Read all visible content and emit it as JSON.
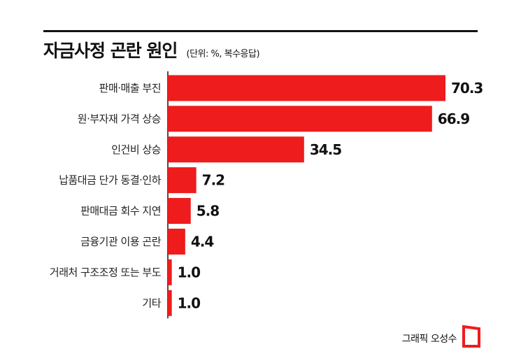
{
  "header": {
    "title": "자금사정 곤란 원인",
    "subtitle": "(단위: %, 복수응답)"
  },
  "chart_data": {
    "type": "bar",
    "orientation": "horizontal",
    "categories": [
      "판매·매출 부진",
      "원·부자재 가격 상승",
      "인건비 상승",
      "납품대금 단가 동결·인하",
      "판매대금 회수 지연",
      "금융기관 이용 곤란",
      "거래처 구조조정 또는 부도",
      "기타"
    ],
    "values": [
      70.3,
      66.9,
      34.5,
      7.2,
      5.8,
      4.4,
      1.0,
      1.0
    ],
    "value_labels": [
      "70.3",
      "66.9",
      "34.5",
      "7.2",
      "5.8",
      "4.4",
      "1.0",
      "1.0"
    ],
    "xlim": [
      0,
      70.3
    ],
    "bar_color": "#ee1c1c",
    "axis_color": "#111111",
    "grid": false,
    "legend": "none"
  },
  "footer": {
    "credit": "그래픽 오성수",
    "logo_icon": "asiae-logo-icon",
    "logo_color": "#ee1c1c"
  }
}
